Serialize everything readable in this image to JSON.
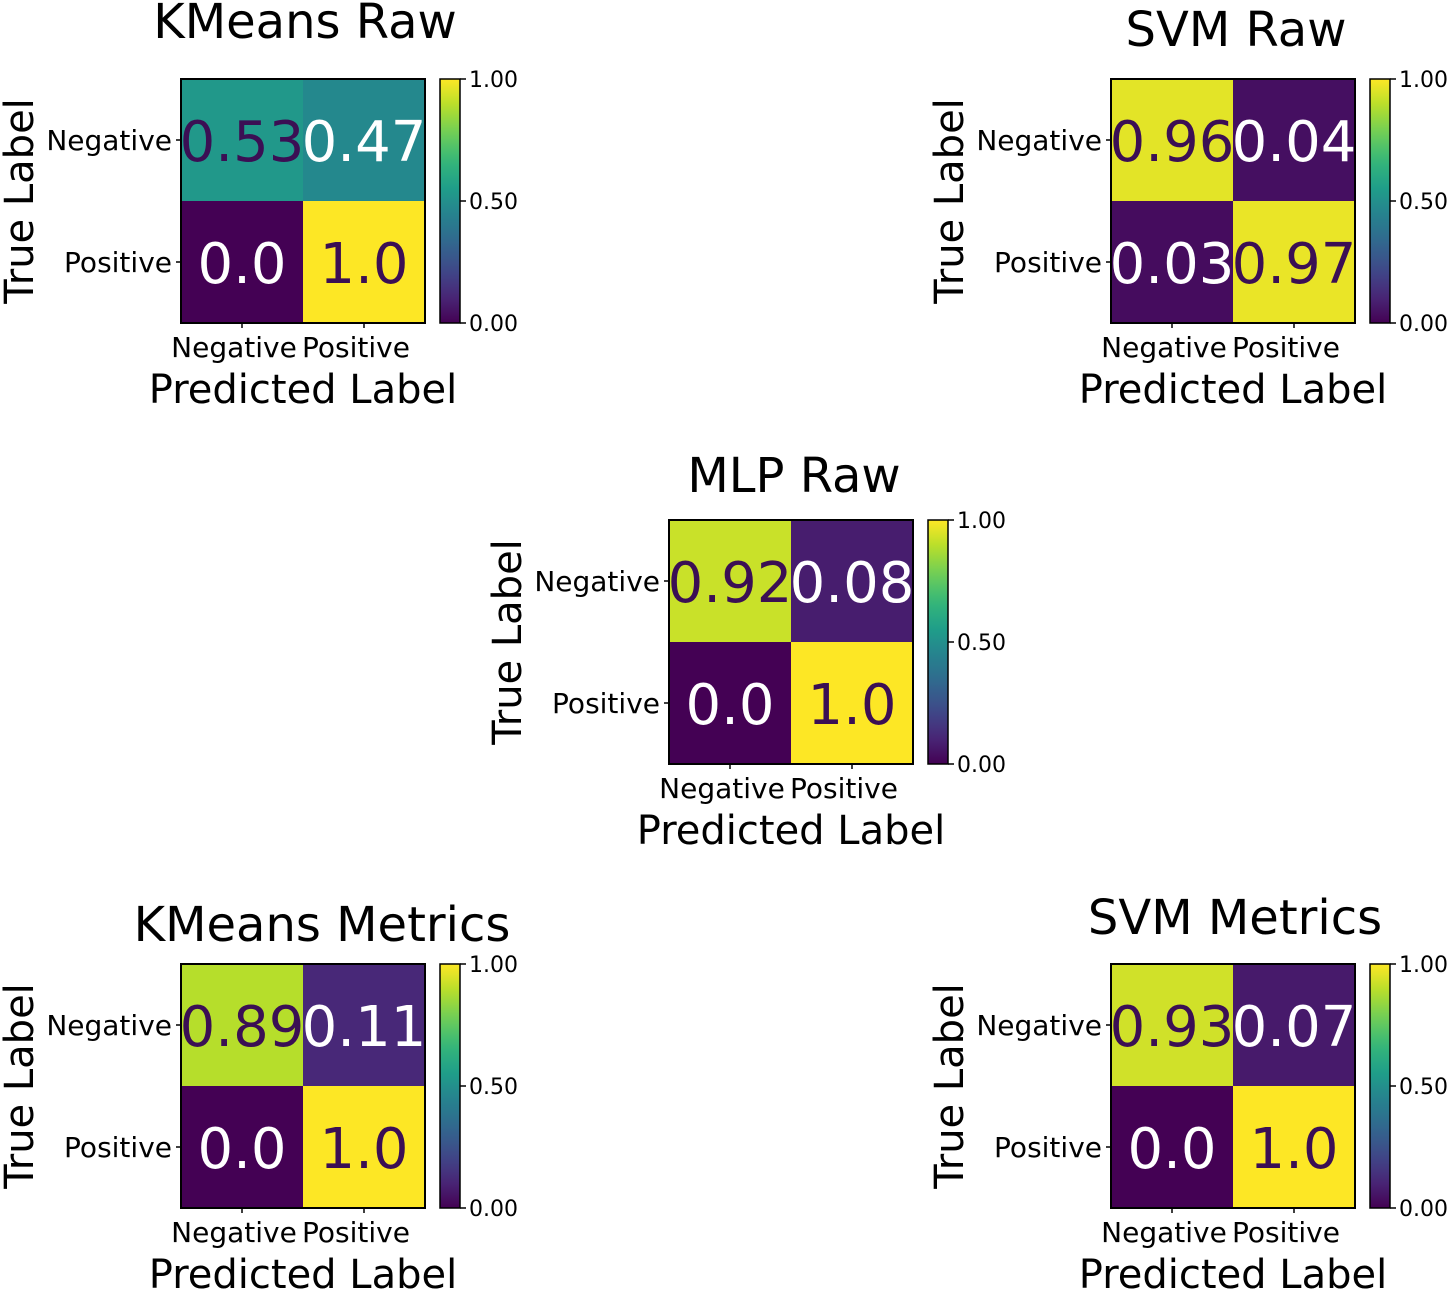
{
  "chart_data": [
    {
      "type": "heatmap",
      "title": "KMeans Raw",
      "xlabel": "Predicted Label",
      "ylabel": "True Label",
      "x_categories": [
        "Negative",
        "Positive"
      ],
      "y_categories": [
        "Negative",
        "Positive"
      ],
      "matrix": [
        [
          0.53,
          0.47
        ],
        [
          0.0,
          1.0
        ]
      ],
      "cell_labels": [
        [
          "0.53",
          "0.47"
        ],
        [
          "0.0",
          "1.0"
        ]
      ],
      "colorbar": {
        "range": [
          0,
          1
        ],
        "ticks": [
          0,
          0.5,
          1
        ],
        "tick_labels": [
          "0.00",
          "0.50",
          "1.00"
        ],
        "colormap": "viridis"
      }
    },
    {
      "type": "heatmap",
      "title": "SVM Raw",
      "xlabel": "Predicted Label",
      "ylabel": "True Label",
      "x_categories": [
        "Negative",
        "Positive"
      ],
      "y_categories": [
        "Negative",
        "Positive"
      ],
      "matrix": [
        [
          0.96,
          0.04
        ],
        [
          0.03,
          0.97
        ]
      ],
      "cell_labels": [
        [
          "0.96",
          "0.04"
        ],
        [
          "0.03",
          "0.97"
        ]
      ],
      "colorbar": {
        "range": [
          0,
          1
        ],
        "ticks": [
          0,
          0.5,
          1
        ],
        "tick_labels": [
          "0.00",
          "0.50",
          "1.00"
        ],
        "colormap": "viridis"
      }
    },
    {
      "type": "heatmap",
      "title": "MLP Raw",
      "xlabel": "Predicted Label",
      "ylabel": "True Label",
      "x_categories": [
        "Negative",
        "Positive"
      ],
      "y_categories": [
        "Negative",
        "Positive"
      ],
      "matrix": [
        [
          0.92,
          0.08
        ],
        [
          0.0,
          1.0
        ]
      ],
      "cell_labels": [
        [
          "0.92",
          "0.08"
        ],
        [
          "0.0",
          "1.0"
        ]
      ],
      "colorbar": {
        "range": [
          0,
          1
        ],
        "ticks": [
          0,
          0.5,
          1
        ],
        "tick_labels": [
          "0.00",
          "0.50",
          "1.00"
        ],
        "colormap": "viridis"
      }
    },
    {
      "type": "heatmap",
      "title": "KMeans Metrics",
      "xlabel": "Predicted Label",
      "ylabel": "True Label",
      "x_categories": [
        "Negative",
        "Positive"
      ],
      "y_categories": [
        "Negative",
        "Positive"
      ],
      "matrix": [
        [
          0.89,
          0.11
        ],
        [
          0.0,
          1.0
        ]
      ],
      "cell_labels": [
        [
          "0.89",
          "0.11"
        ],
        [
          "0.0",
          "1.0"
        ]
      ],
      "colorbar": {
        "range": [
          0,
          1
        ],
        "ticks": [
          0,
          0.5,
          1
        ],
        "tick_labels": [
          "0.00",
          "0.50",
          "1.00"
        ],
        "colormap": "viridis"
      }
    },
    {
      "type": "heatmap",
      "title": "SVM Metrics",
      "xlabel": "Predicted Label",
      "ylabel": "True Label",
      "x_categories": [
        "Negative",
        "Positive"
      ],
      "y_categories": [
        "Negative",
        "Positive"
      ],
      "matrix": [
        [
          0.93,
          0.07
        ],
        [
          0.0,
          1.0
        ]
      ],
      "cell_labels": [
        [
          "0.93",
          "0.07"
        ],
        [
          "0.0",
          "1.0"
        ]
      ],
      "colorbar": {
        "range": [
          0,
          1
        ],
        "ticks": [
          0,
          0.5,
          1
        ],
        "tick_labels": [
          "0.00",
          "0.50",
          "1.00"
        ],
        "colormap": "viridis"
      }
    }
  ]
}
